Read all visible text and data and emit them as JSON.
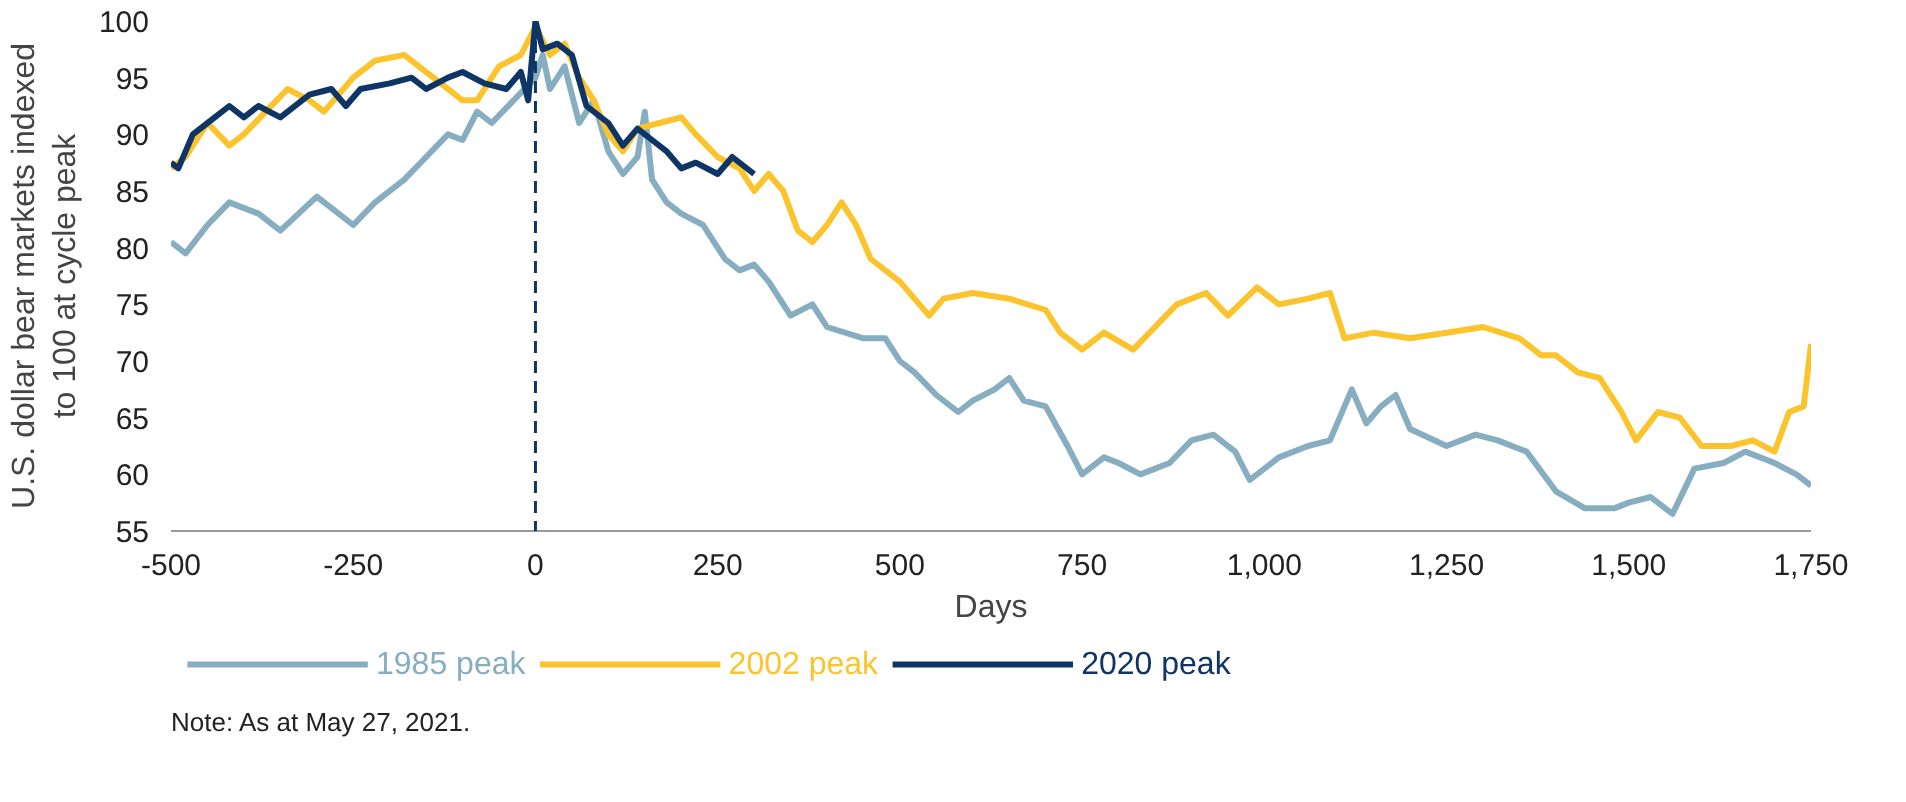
{
  "chart_data": {
    "type": "line",
    "xlabel": "Days",
    "ylabel": "U.S. dollar bear markets indexed to 100 at cycle peak",
    "xlim": [
      -500,
      1750
    ],
    "ylim": [
      55,
      100
    ],
    "xticks": [
      {
        "value": -500,
        "label": "-500"
      },
      {
        "value": -250,
        "label": "-250"
      },
      0,
      250,
      500,
      750,
      {
        "value": 1000,
        "label": "1,000"
      },
      {
        "value": 1250,
        "label": "1,250"
      },
      {
        "value": 1500,
        "label": "1,500"
      },
      {
        "value": 1750,
        "label": "1,750"
      }
    ],
    "yticks": [
      55,
      60,
      65,
      70,
      75,
      80,
      85,
      90,
      95,
      100
    ],
    "grid": false,
    "legend": "bottom",
    "line_style": "solid",
    "ref_lines": [
      {
        "axis": "x",
        "value": 0,
        "color": "#0f3466",
        "line_style": "dashed"
      }
    ],
    "annotations": [
      "Note: As at May 27, 2021."
    ],
    "series": [
      {
        "name": "1985 peak",
        "color": "#87aec0",
        "x": [
          -500,
          -480,
          -450,
          -420,
          -380,
          -350,
          -300,
          -270,
          -250,
          -220,
          -180,
          -150,
          -120,
          -100,
          -80,
          -60,
          -30,
          0,
          10,
          20,
          40,
          60,
          80,
          100,
          120,
          140,
          150,
          160,
          180,
          200,
          230,
          260,
          280,
          300,
          320,
          350,
          380,
          400,
          450,
          480,
          500,
          520,
          550,
          580,
          600,
          630,
          650,
          670,
          700,
          730,
          750,
          780,
          800,
          830,
          870,
          900,
          930,
          960,
          980,
          1020,
          1060,
          1090,
          1110,
          1120,
          1140,
          1160,
          1180,
          1200,
          1250,
          1290,
          1320,
          1360,
          1400,
          1440,
          1480,
          1500,
          1530,
          1560,
          1590,
          1630,
          1660,
          1700,
          1730,
          1750
        ],
        "values": [
          80.5,
          79.5,
          82,
          84,
          83,
          81.5,
          84.5,
          83,
          82,
          84,
          86,
          88,
          90,
          89.5,
          92,
          91,
          93,
          95,
          97,
          94,
          96,
          91,
          93,
          88.5,
          86.5,
          88,
          92,
          86,
          84,
          83,
          82,
          79,
          78,
          78.5,
          77,
          74,
          75,
          73,
          72,
          72,
          70,
          69,
          67,
          65.5,
          66.5,
          67.5,
          68.5,
          66.5,
          66,
          62.5,
          60,
          61.5,
          61,
          60,
          61,
          63,
          63.5,
          62,
          59.5,
          61.5,
          62.5,
          63,
          66,
          67.5,
          64.5,
          66,
          67,
          64,
          62.5,
          63.5,
          63,
          62,
          58.5,
          57,
          57,
          57.5,
          58,
          56.5,
          60.5,
          61,
          62,
          61,
          60,
          59
        ]
      },
      {
        "name": "2002 peak",
        "color": "#fcc42c",
        "x": [
          -500,
          -480,
          -450,
          -420,
          -400,
          -370,
          -340,
          -310,
          -290,
          -250,
          -220,
          -180,
          -160,
          -140,
          -100,
          -80,
          -50,
          -20,
          0,
          20,
          40,
          60,
          80,
          100,
          120,
          140,
          170,
          200,
          220,
          250,
          280,
          300,
          320,
          340,
          360,
          380,
          400,
          420,
          440,
          460,
          500,
          540,
          560,
          600,
          650,
          700,
          720,
          750,
          780,
          820,
          850,
          880,
          920,
          950,
          990,
          1020,
          1060,
          1090,
          1110,
          1150,
          1200,
          1250,
          1300,
          1350,
          1380,
          1400,
          1430,
          1460,
          1490,
          1510,
          1540,
          1570,
          1600,
          1640,
          1670,
          1700,
          1720,
          1740,
          1750
        ],
        "values": [
          87,
          88,
          91,
          89,
          90,
          92,
          94,
          93,
          92,
          95,
          96.5,
          97,
          96,
          95,
          93,
          93,
          96,
          97,
          99.5,
          97,
          98,
          95,
          93,
          90,
          88.5,
          90.5,
          91,
          91.5,
          90,
          88,
          87,
          85,
          86.5,
          85,
          81.5,
          80.5,
          82,
          84,
          82,
          79,
          77,
          74,
          75.5,
          76,
          75.5,
          74.5,
          72.5,
          71,
          72.5,
          71,
          73,
          75,
          76,
          74,
          76.5,
          75,
          75.5,
          76,
          72,
          72.5,
          72,
          72.5,
          73,
          72,
          70.5,
          70.5,
          69,
          68.5,
          65.5,
          63,
          65.5,
          65,
          62.5,
          62.5,
          63,
          62,
          65.5,
          66,
          71.5
        ]
      },
      {
        "name": "2020 peak",
        "color": "#0f3466",
        "x": [
          -500,
          -490,
          -470,
          -440,
          -420,
          -400,
          -380,
          -350,
          -310,
          -280,
          -260,
          -240,
          -200,
          -170,
          -150,
          -120,
          -100,
          -70,
          -40,
          -20,
          -10,
          0,
          10,
          30,
          50,
          70,
          100,
          120,
          140,
          160,
          180,
          200,
          220,
          250,
          270,
          300
        ],
        "values": [
          87.5,
          87,
          90,
          91.5,
          92.5,
          91.5,
          92.5,
          91.5,
          93.5,
          94,
          92.5,
          94,
          94.5,
          95,
          94,
          95,
          95.5,
          94.5,
          94,
          95.5,
          93,
          100,
          97.5,
          98,
          97,
          92.5,
          91,
          89,
          90.5,
          89.5,
          88.5,
          87,
          87.5,
          86.5,
          88,
          86.5
        ]
      }
    ]
  }
}
